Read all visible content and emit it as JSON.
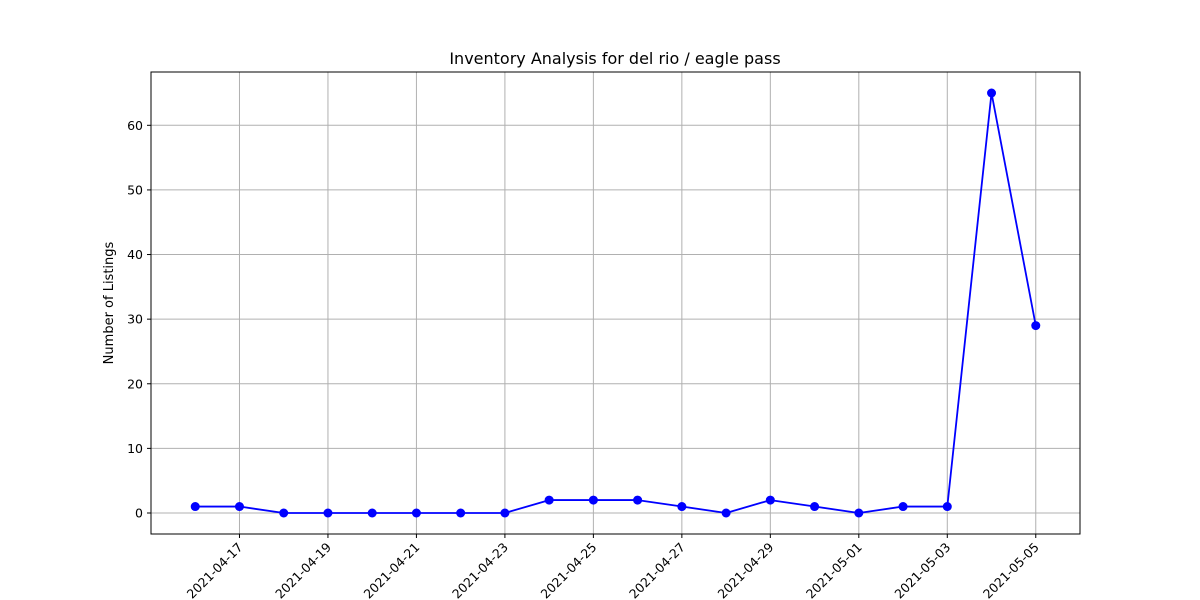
{
  "chart_data": {
    "type": "line",
    "title": "Inventory Analysis for del rio / eagle pass",
    "xlabel": "",
    "ylabel": "Number of Listings",
    "x": [
      "2021-04-16",
      "2021-04-17",
      "2021-04-18",
      "2021-04-19",
      "2021-04-20",
      "2021-04-21",
      "2021-04-22",
      "2021-04-23",
      "2021-04-24",
      "2021-04-25",
      "2021-04-26",
      "2021-04-27",
      "2021-04-28",
      "2021-04-29",
      "2021-04-30",
      "2021-05-01",
      "2021-05-02",
      "2021-05-03",
      "2021-05-04",
      "2021-05-05"
    ],
    "series": [
      {
        "values": [
          1,
          1,
          0,
          0,
          0,
          0,
          0,
          0,
          2,
          2,
          2,
          1,
          0,
          2,
          1,
          0,
          1,
          1,
          65,
          29
        ],
        "color": "#0000ff",
        "marker": "circle"
      }
    ],
    "xtick_labels": [
      "2021-04-17",
      "2021-04-19",
      "2021-04-21",
      "2021-04-23",
      "2021-04-25",
      "2021-04-27",
      "2021-04-29",
      "2021-05-01",
      "2021-05-03",
      "2021-05-05"
    ],
    "ytick_labels": [
      "0",
      "10",
      "20",
      "30",
      "40",
      "50",
      "60"
    ],
    "ylim": [
      -3.25,
      68.25
    ],
    "xlim": [
      "2021-04-15",
      "2021-05-06"
    ],
    "grid": true,
    "legend": "none"
  }
}
